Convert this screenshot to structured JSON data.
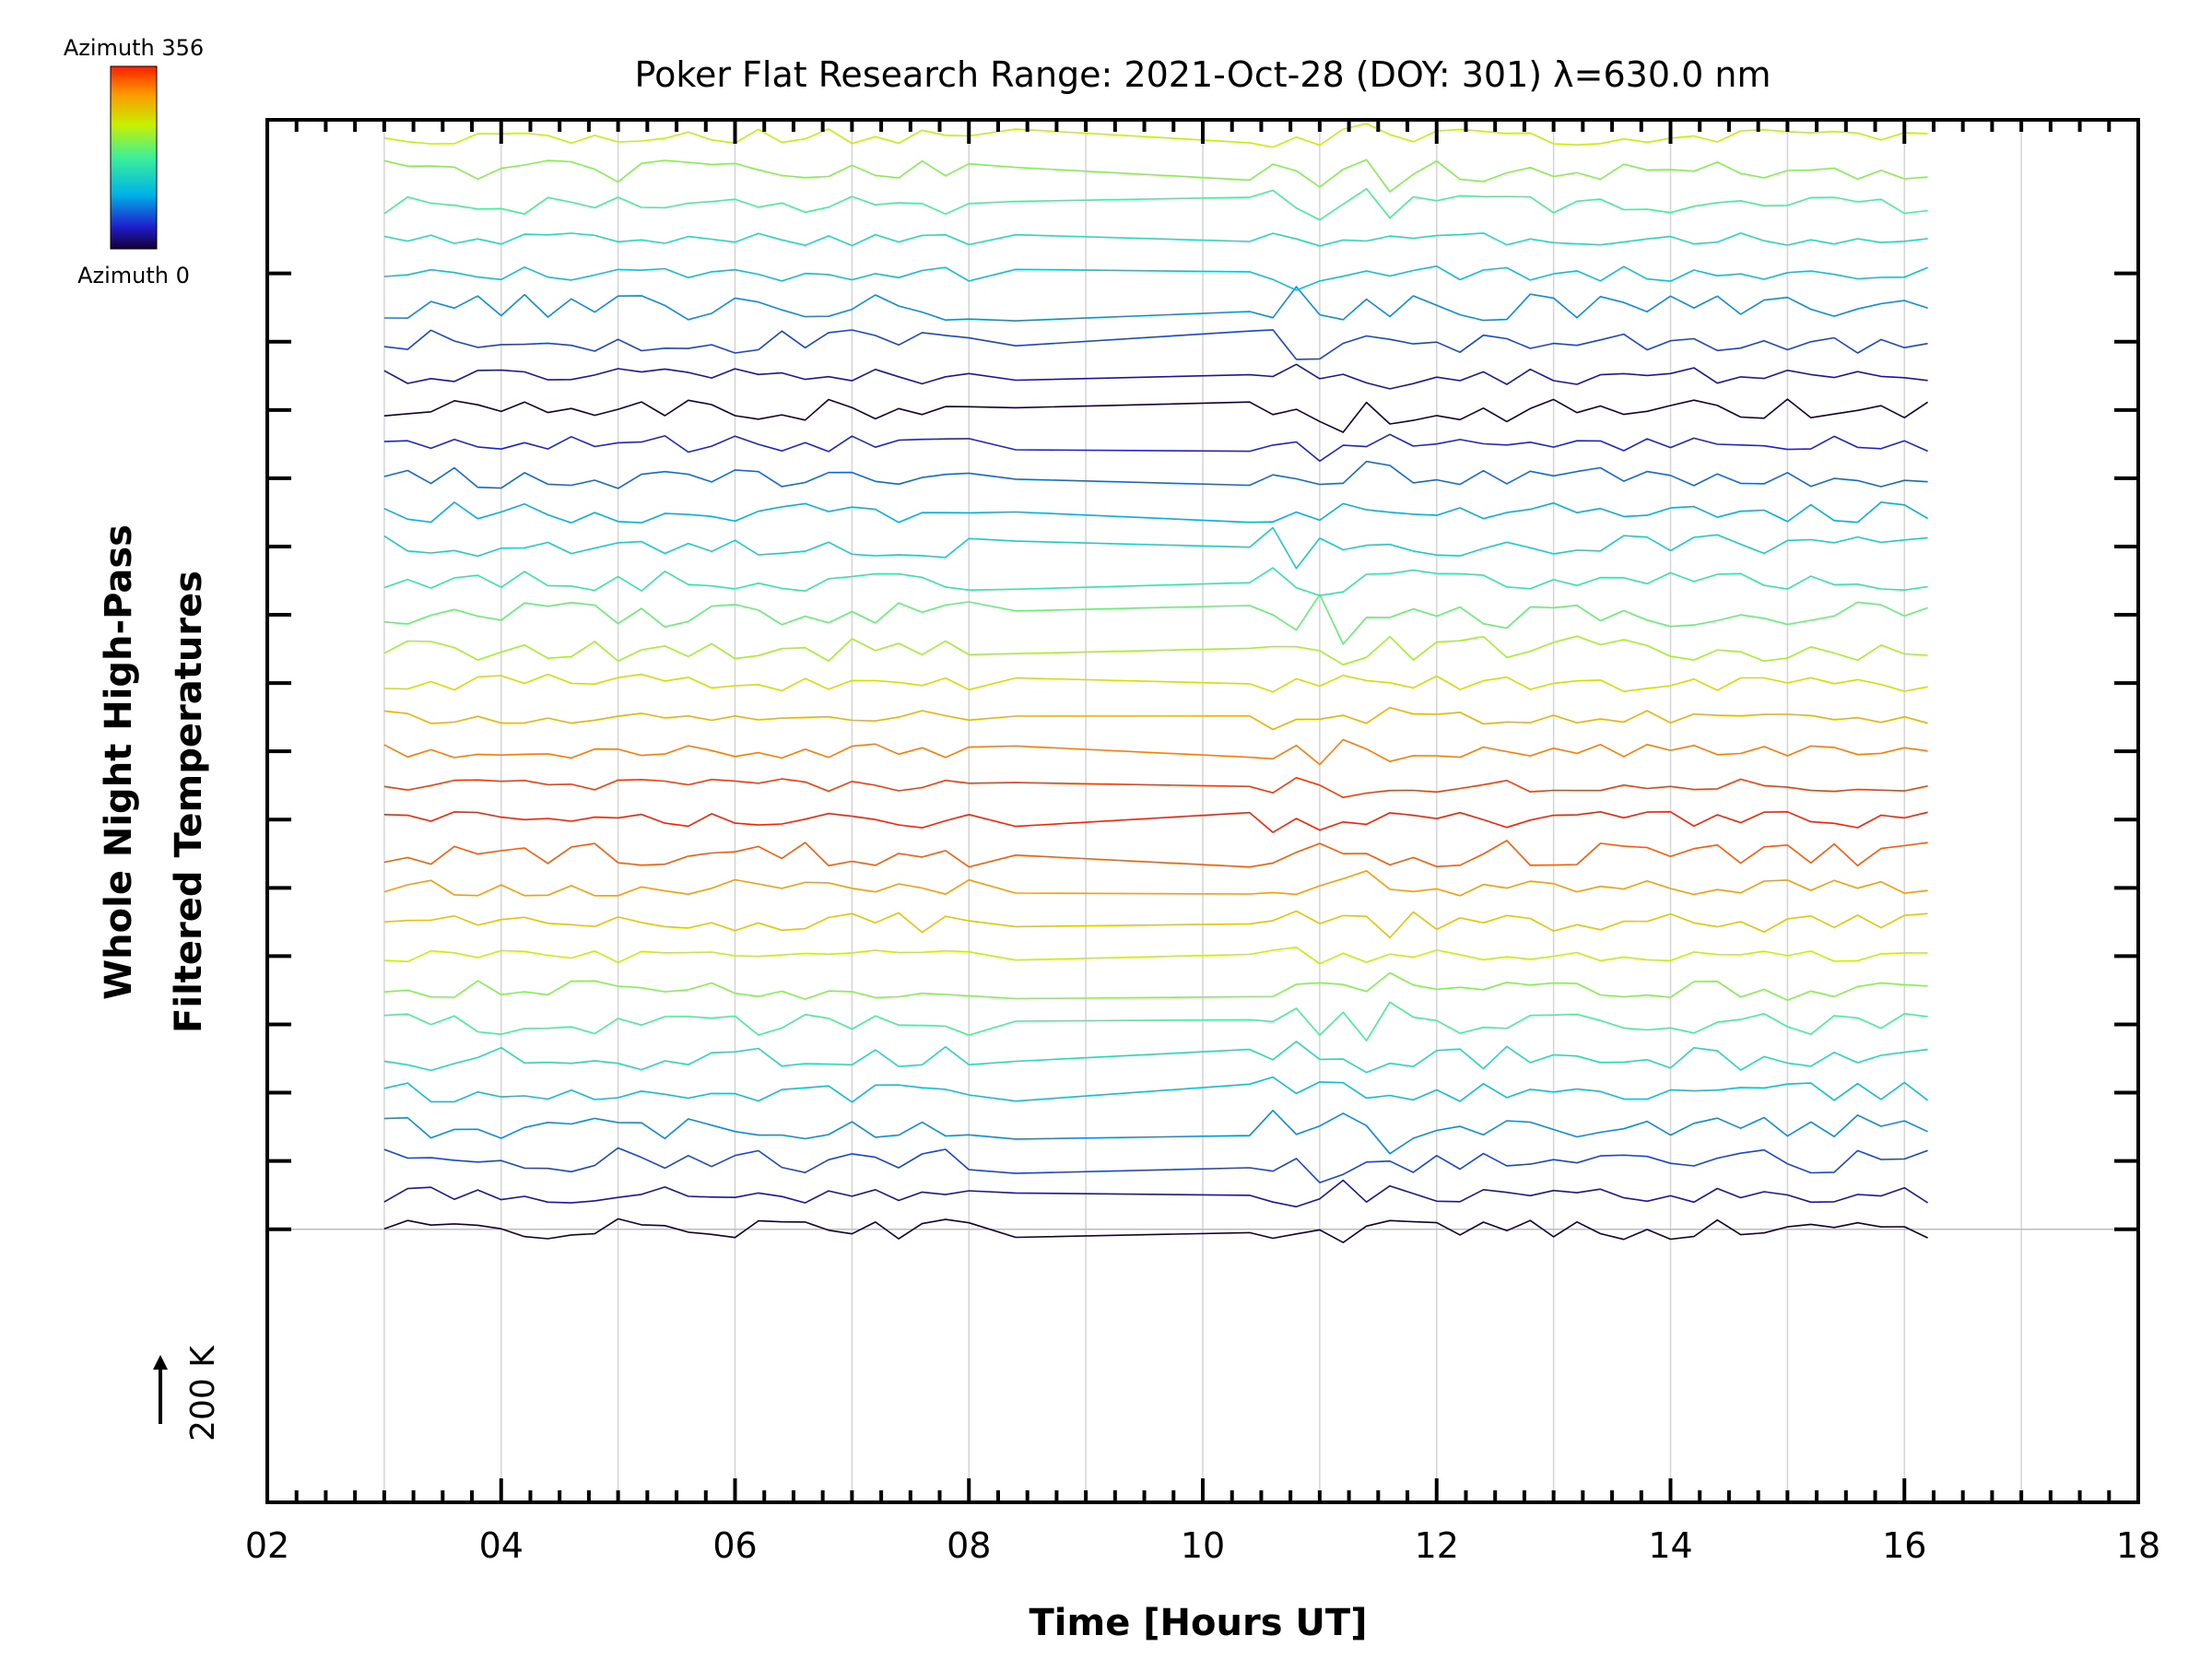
{
  "chart_data": {
    "type": "line",
    "title": "Poker Flat Research Range: 2021-Oct-28 (DOY: 301) λ=630.0 nm",
    "xlabel": "Time [Hours UT]",
    "ylabel_line1": "Whole Night High-Pass",
    "ylabel_line2": "Filtered Temperatures",
    "xlim": [
      2,
      18
    ],
    "x_ticks": [
      "02",
      "04",
      "06",
      "08",
      "10",
      "12",
      "14",
      "16",
      "18"
    ],
    "x_minor_step": 0.25,
    "y_tick_step": 200,
    "y_ticks_count": 15,
    "ylim": [
      -800,
      3250
    ],
    "grid": true,
    "grid_x_step": 1,
    "scale_bar_label": "200 K",
    "colorbar": {
      "label_max": "Azimuth 356",
      "label_min": "Azimuth 0",
      "min": 0,
      "max": 356,
      "colormap": "rainbow"
    },
    "series_count": 120,
    "series_spacing": 100,
    "x": [
      3.0,
      3.2,
      3.4,
      3.6,
      3.8,
      4.0,
      4.2,
      4.4,
      4.6,
      4.8,
      5.0,
      5.2,
      5.4,
      5.6,
      5.8,
      6.0,
      6.2,
      6.4,
      6.6,
      6.8,
      7.0,
      7.2,
      7.4,
      7.6,
      7.8,
      8.0,
      8.4,
      10.4,
      10.6,
      10.8,
      11.0,
      11.2,
      11.4,
      11.6,
      11.8,
      12.0,
      12.2,
      12.4,
      12.6,
      12.8,
      13.0,
      13.2,
      13.4,
      13.6,
      13.8,
      14.0,
      14.2,
      14.4,
      14.6,
      14.8,
      15.0,
      15.2,
      15.4,
      15.6,
      15.8,
      16.0,
      16.2
    ],
    "azimuth_cycle": [
      0,
      30,
      60,
      90,
      120,
      150,
      180,
      210,
      240,
      270,
      300,
      330,
      356,
      345,
      315,
      285,
      255,
      225,
      195,
      165,
      135,
      105,
      75,
      45
    ],
    "noise_seed": 42
  }
}
